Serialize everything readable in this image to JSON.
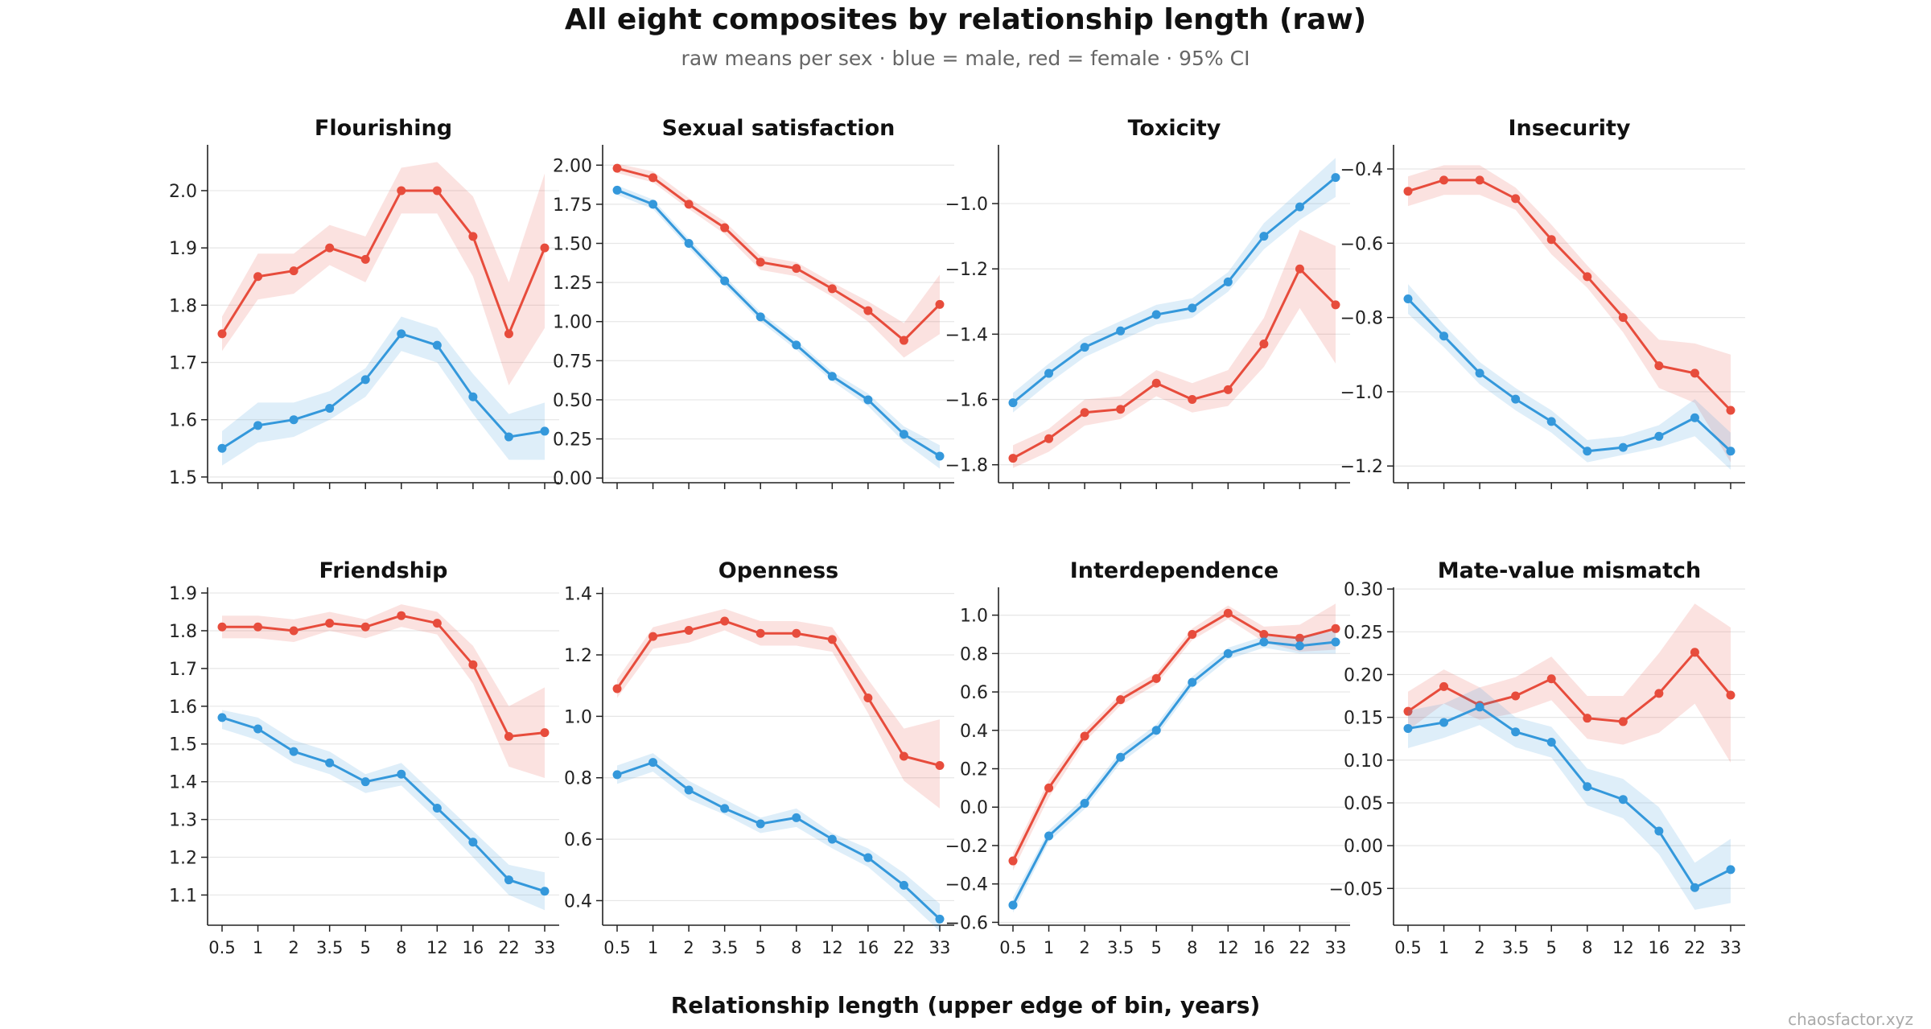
{
  "title": "All eight composites by relationship length (raw)",
  "subtitle": "raw means per sex · blue = male, red = female · 95% CI",
  "xlabel": "Relationship length (upper edge of bin, years)",
  "watermark": "chaosfactor.xyz",
  "colors": {
    "male": "#3498db",
    "female": "#e74c3c",
    "grid": "#e6e6e6",
    "axis": "#222222"
  },
  "chart_data": [
    {
      "type": "line",
      "title": "Flourishing",
      "categories": [
        "0.5",
        "1",
        "2",
        "3.5",
        "5",
        "8",
        "12",
        "16",
        "22",
        "33"
      ],
      "ylim": [
        1.49,
        2.08
      ],
      "yticks": [
        1.5,
        1.6,
        1.7,
        1.8,
        1.9,
        2.0
      ],
      "ytick_labels": [
        "1.5",
        "1.6",
        "1.7",
        "1.8",
        "1.9",
        "2.0"
      ],
      "show_xticklabels": false,
      "series": [
        {
          "sex": "female",
          "values": [
            1.75,
            1.85,
            1.86,
            1.9,
            1.88,
            2.0,
            2.0,
            1.92,
            1.75,
            1.9
          ],
          "lower": [
            1.72,
            1.81,
            1.82,
            1.87,
            1.84,
            1.96,
            1.96,
            1.85,
            1.66,
            1.76
          ],
          "upper": [
            1.78,
            1.89,
            1.89,
            1.94,
            1.92,
            2.04,
            2.05,
            1.99,
            1.84,
            2.03
          ]
        },
        {
          "sex": "male",
          "values": [
            1.55,
            1.59,
            1.6,
            1.62,
            1.67,
            1.75,
            1.73,
            1.64,
            1.57,
            1.58
          ],
          "lower": [
            1.52,
            1.56,
            1.57,
            1.6,
            1.64,
            1.72,
            1.7,
            1.61,
            1.53,
            1.53
          ],
          "upper": [
            1.58,
            1.63,
            1.63,
            1.65,
            1.69,
            1.78,
            1.76,
            1.68,
            1.61,
            1.63
          ]
        }
      ]
    },
    {
      "type": "line",
      "title": "Sexual satisfaction",
      "categories": [
        "0.5",
        "1",
        "2",
        "3.5",
        "5",
        "8",
        "12",
        "16",
        "22",
        "33"
      ],
      "ylim": [
        -0.03,
        2.13
      ],
      "yticks": [
        0,
        0.25,
        0.5,
        0.75,
        1.0,
        1.25,
        1.5,
        1.75,
        2.0
      ],
      "ytick_labels": [
        "0.00",
        "0.25",
        "0.50",
        "0.75",
        "1.00",
        "1.25",
        "1.50",
        "1.75",
        "2.00"
      ],
      "show_xticklabels": false,
      "series": [
        {
          "sex": "female",
          "values": [
            1.98,
            1.92,
            1.75,
            1.6,
            1.38,
            1.34,
            1.21,
            1.07,
            0.88,
            1.11
          ],
          "lower": [
            1.95,
            1.89,
            1.72,
            1.56,
            1.33,
            1.29,
            1.16,
            1.0,
            0.77,
            0.92
          ],
          "upper": [
            2.01,
            1.96,
            1.79,
            1.64,
            1.42,
            1.38,
            1.25,
            1.13,
            0.99,
            1.3
          ]
        },
        {
          "sex": "male",
          "values": [
            1.84,
            1.75,
            1.5,
            1.26,
            1.03,
            0.85,
            0.65,
            0.5,
            0.28,
            0.14
          ],
          "lower": [
            1.81,
            1.72,
            1.47,
            1.23,
            1.0,
            0.82,
            0.62,
            0.46,
            0.23,
            0.06
          ],
          "upper": [
            1.87,
            1.78,
            1.53,
            1.29,
            1.06,
            0.88,
            0.68,
            0.54,
            0.33,
            0.21
          ]
        }
      ]
    },
    {
      "type": "line",
      "title": "Toxicity",
      "categories": [
        "0.5",
        "1",
        "2",
        "3.5",
        "5",
        "8",
        "12",
        "16",
        "22",
        "33"
      ],
      "ylim": [
        -1.855,
        -0.82
      ],
      "yticks": [
        -1.8,
        -1.6,
        -1.4,
        -1.2,
        -1.0
      ],
      "ytick_labels": [
        "−1.8",
        "−1.6",
        "−1.4",
        "−1.2",
        "−1.0"
      ],
      "show_xticklabels": false,
      "series": [
        {
          "sex": "female",
          "values": [
            -1.78,
            -1.72,
            -1.64,
            -1.63,
            -1.55,
            -1.6,
            -1.57,
            -1.43,
            -1.2,
            -1.31
          ],
          "lower": [
            -1.81,
            -1.76,
            -1.68,
            -1.66,
            -1.59,
            -1.64,
            -1.62,
            -1.5,
            -1.32,
            -1.49
          ],
          "upper": [
            -1.74,
            -1.69,
            -1.6,
            -1.59,
            -1.51,
            -1.55,
            -1.51,
            -1.35,
            -1.08,
            -1.13
          ]
        },
        {
          "sex": "male",
          "values": [
            -1.61,
            -1.52,
            -1.44,
            -1.39,
            -1.34,
            -1.32,
            -1.24,
            -1.1,
            -1.01,
            -0.92
          ],
          "lower": [
            -1.64,
            -1.55,
            -1.47,
            -1.42,
            -1.37,
            -1.35,
            -1.27,
            -1.14,
            -1.05,
            -0.98
          ],
          "upper": [
            -1.58,
            -1.49,
            -1.41,
            -1.36,
            -1.31,
            -1.29,
            -1.21,
            -1.06,
            -0.96,
            -0.86
          ]
        }
      ]
    },
    {
      "type": "line",
      "title": "Insecurity",
      "categories": [
        "0.5",
        "1",
        "2",
        "3.5",
        "5",
        "8",
        "12",
        "16",
        "22",
        "33"
      ],
      "ylim": [
        -1.245,
        -0.335
      ],
      "yticks": [
        -1.2,
        -1.0,
        -0.8,
        -0.6,
        -0.4
      ],
      "ytick_labels": [
        "−1.2",
        "−1.0",
        "−0.8",
        "−0.6",
        "−0.4"
      ],
      "show_xticklabels": false,
      "series": [
        {
          "sex": "female",
          "values": [
            -0.46,
            -0.43,
            -0.43,
            -0.48,
            -0.59,
            -0.69,
            -0.8,
            -0.93,
            -0.95,
            -1.05
          ],
          "lower": [
            -0.5,
            -0.47,
            -0.47,
            -0.51,
            -0.63,
            -0.72,
            -0.84,
            -0.99,
            -1.03,
            -1.19
          ],
          "upper": [
            -0.42,
            -0.39,
            -0.39,
            -0.45,
            -0.55,
            -0.66,
            -0.76,
            -0.86,
            -0.87,
            -0.9
          ]
        },
        {
          "sex": "male",
          "values": [
            -0.75,
            -0.85,
            -0.95,
            -1.02,
            -1.08,
            -1.16,
            -1.15,
            -1.12,
            -1.07,
            -1.16
          ],
          "lower": [
            -0.79,
            -0.88,
            -0.98,
            -1.05,
            -1.11,
            -1.19,
            -1.17,
            -1.15,
            -1.12,
            -1.21
          ],
          "upper": [
            -0.71,
            -0.82,
            -0.92,
            -0.99,
            -1.05,
            -1.13,
            -1.12,
            -1.09,
            -1.02,
            -1.11
          ]
        }
      ]
    },
    {
      "type": "line",
      "title": "Friendship",
      "categories": [
        "0.5",
        "1",
        "2",
        "3.5",
        "5",
        "8",
        "12",
        "16",
        "22",
        "33"
      ],
      "ylim": [
        1.02,
        1.915
      ],
      "yticks": [
        1.1,
        1.2,
        1.3,
        1.4,
        1.5,
        1.6,
        1.7,
        1.8,
        1.9
      ],
      "ytick_labels": [
        "1.1",
        "1.2",
        "1.3",
        "1.4",
        "1.5",
        "1.6",
        "1.7",
        "1.8",
        "1.9"
      ],
      "show_xticklabels": true,
      "series": [
        {
          "sex": "female",
          "values": [
            1.81,
            1.81,
            1.8,
            1.82,
            1.81,
            1.84,
            1.82,
            1.71,
            1.52,
            1.53
          ],
          "lower": [
            1.78,
            1.78,
            1.77,
            1.8,
            1.78,
            1.81,
            1.79,
            1.66,
            1.44,
            1.41
          ],
          "upper": [
            1.84,
            1.84,
            1.83,
            1.85,
            1.83,
            1.87,
            1.85,
            1.76,
            1.6,
            1.65
          ]
        },
        {
          "sex": "male",
          "values": [
            1.57,
            1.54,
            1.48,
            1.45,
            1.4,
            1.42,
            1.33,
            1.24,
            1.14,
            1.11
          ],
          "lower": [
            1.54,
            1.51,
            1.45,
            1.42,
            1.37,
            1.39,
            1.3,
            1.2,
            1.1,
            1.06
          ],
          "upper": [
            1.59,
            1.57,
            1.51,
            1.48,
            1.42,
            1.45,
            1.36,
            1.27,
            1.18,
            1.16
          ]
        }
      ]
    },
    {
      "type": "line",
      "title": "Openness",
      "categories": [
        "0.5",
        "1",
        "2",
        "3.5",
        "5",
        "8",
        "12",
        "16",
        "22",
        "33"
      ],
      "ylim": [
        0.32,
        1.42
      ],
      "yticks": [
        0.4,
        0.6,
        0.8,
        1.0,
        1.2,
        1.4
      ],
      "ytick_labels": [
        "0.4",
        "0.6",
        "0.8",
        "1.0",
        "1.2",
        "1.4"
      ],
      "show_xticklabels": true,
      "series": [
        {
          "sex": "female",
          "values": [
            1.09,
            1.26,
            1.28,
            1.31,
            1.27,
            1.27,
            1.25,
            1.06,
            0.87,
            0.84
          ],
          "lower": [
            1.06,
            1.22,
            1.24,
            1.28,
            1.23,
            1.23,
            1.21,
            1.01,
            0.79,
            0.7
          ],
          "upper": [
            1.12,
            1.29,
            1.32,
            1.35,
            1.31,
            1.31,
            1.29,
            1.12,
            0.96,
            0.99
          ]
        },
        {
          "sex": "male",
          "values": [
            0.81,
            0.85,
            0.76,
            0.7,
            0.65,
            0.67,
            0.6,
            0.54,
            0.45,
            0.34
          ],
          "lower": [
            0.78,
            0.82,
            0.73,
            0.68,
            0.62,
            0.64,
            0.57,
            0.51,
            0.41,
            0.3
          ],
          "upper": [
            0.84,
            0.88,
            0.79,
            0.73,
            0.67,
            0.7,
            0.62,
            0.57,
            0.49,
            0.39
          ]
        }
      ]
    },
    {
      "type": "line",
      "title": "Interdependence",
      "categories": [
        "0.5",
        "1",
        "2",
        "3.5",
        "5",
        "8",
        "12",
        "16",
        "22",
        "33"
      ],
      "ylim": [
        -0.615,
        1.145
      ],
      "yticks": [
        -0.6,
        -0.4,
        -0.2,
        0.0,
        0.2,
        0.4,
        0.6,
        0.8,
        1.0
      ],
      "ytick_labels": [
        "−0.6",
        "−0.4",
        "−0.2",
        "0.0",
        "0.2",
        "0.4",
        "0.6",
        "0.8",
        "1.0"
      ],
      "show_xticklabels": true,
      "series": [
        {
          "sex": "female",
          "values": [
            -0.28,
            0.1,
            0.37,
            0.56,
            0.67,
            0.9,
            1.01,
            0.9,
            0.88,
            0.93
          ],
          "lower": [
            -0.33,
            0.05,
            0.34,
            0.53,
            0.64,
            0.87,
            0.98,
            0.86,
            0.81,
            0.82
          ],
          "upper": [
            -0.24,
            0.14,
            0.4,
            0.59,
            0.7,
            0.93,
            1.05,
            0.94,
            0.95,
            1.06
          ]
        },
        {
          "sex": "male",
          "values": [
            -0.51,
            -0.15,
            0.02,
            0.26,
            0.4,
            0.65,
            0.8,
            0.86,
            0.84,
            0.86
          ],
          "lower": [
            -0.55,
            -0.18,
            -0.01,
            0.23,
            0.37,
            0.62,
            0.77,
            0.83,
            0.8,
            0.8
          ],
          "upper": [
            -0.47,
            -0.12,
            0.05,
            0.29,
            0.43,
            0.68,
            0.83,
            0.89,
            0.88,
            0.92
          ]
        }
      ]
    },
    {
      "type": "line",
      "title": "Mate-value mismatch",
      "categories": [
        "0.5",
        "1",
        "2",
        "3.5",
        "5",
        "8",
        "12",
        "16",
        "22",
        "33"
      ],
      "ylim": [
        -0.093,
        0.302
      ],
      "yticks": [
        -0.05,
        0.0,
        0.05,
        0.1,
        0.15,
        0.2,
        0.25,
        0.3
      ],
      "ytick_labels": [
        "−0.05",
        "0.00",
        "0.05",
        "0.10",
        "0.15",
        "0.20",
        "0.25",
        "0.30"
      ],
      "show_xticklabels": true,
      "series": [
        {
          "sex": "female",
          "values": [
            0.157,
            0.186,
            0.164,
            0.175,
            0.195,
            0.149,
            0.145,
            0.178,
            0.226,
            0.176
          ],
          "lower": [
            0.135,
            0.166,
            0.147,
            0.155,
            0.17,
            0.125,
            0.118,
            0.132,
            0.166,
            0.097
          ],
          "upper": [
            0.18,
            0.206,
            0.185,
            0.197,
            0.221,
            0.175,
            0.175,
            0.225,
            0.283,
            0.255
          ]
        },
        {
          "sex": "male",
          "values": [
            0.137,
            0.144,
            0.162,
            0.133,
            0.121,
            0.069,
            0.054,
            0.017,
            -0.049,
            -0.028
          ],
          "lower": [
            0.114,
            0.126,
            0.141,
            0.115,
            0.103,
            0.047,
            0.032,
            -0.01,
            -0.075,
            -0.067
          ],
          "upper": [
            0.158,
            0.166,
            0.185,
            0.15,
            0.139,
            0.09,
            0.078,
            0.045,
            -0.02,
            0.008
          ]
        }
      ]
    }
  ]
}
